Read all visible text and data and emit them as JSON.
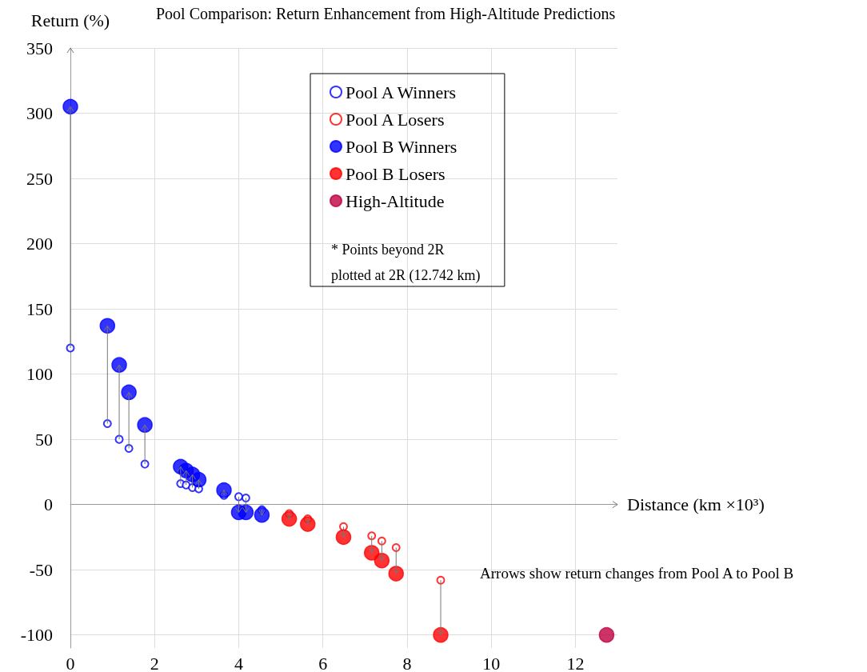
{
  "chart_data": {
    "type": "scatter",
    "title": "Pool Comparison: Return Enhancement from High-Altitude Predictions",
    "xlabel": "Distance (km ×10³)",
    "ylabel": "Return (%)",
    "xlim": [
      0,
      13
    ],
    "xticks": [
      0,
      2,
      4,
      6,
      8,
      10,
      12
    ],
    "ylim": [
      -110,
      350
    ],
    "yticks": [
      -100,
      -50,
      0,
      50,
      100,
      150,
      200,
      250,
      300,
      350
    ],
    "grid": true,
    "legend": "top right",
    "marker": "circle",
    "annotations": [
      "* Points beyond 2R\nplotted at 2R (12.742 km)",
      "Arrows show return changes from Pool A to Pool B"
    ],
    "series": [
      {
        "name": "Pool A Winners",
        "color": "#0000ff",
        "x": [
          0,
          0.88,
          1.16,
          1.39,
          1.77,
          2.62,
          2.75,
          2.9,
          3.05,
          3.65,
          4.0,
          4.17,
          4.55
        ],
        "values": [
          120,
          62,
          50,
          43,
          31,
          16,
          15,
          13,
          12,
          7,
          6,
          5,
          -4
        ]
      },
      {
        "name": "Pool A Losers",
        "color": "#ff0000",
        "x": [
          5.2,
          5.64,
          6.49,
          7.16,
          7.4,
          7.74,
          8.8
        ],
        "values": [
          -7,
          -11,
          -17,
          -24,
          -28,
          -33,
          -58
        ]
      },
      {
        "name": "Pool B Winners",
        "color": "#0000ff",
        "x": [
          0,
          0.88,
          1.16,
          1.39,
          1.77,
          2.62,
          2.75,
          2.9,
          3.05,
          3.65,
          4.0,
          4.17,
          4.55
        ],
        "values": [
          305,
          137,
          107,
          86,
          61,
          29,
          26,
          23,
          19,
          11,
          -6,
          -6,
          -8
        ]
      },
      {
        "name": "Pool B Losers",
        "color": "#ff0000",
        "x": [
          5.2,
          5.64,
          6.49,
          7.16,
          7.4,
          7.74,
          8.8
        ],
        "values": [
          -11,
          -15,
          -25,
          -37,
          -43,
          -53,
          -100
        ]
      },
      {
        "name": "High-Altitude",
        "color": "#bf0040",
        "x": [
          12.742
        ],
        "values": [
          -100
        ]
      }
    ]
  }
}
